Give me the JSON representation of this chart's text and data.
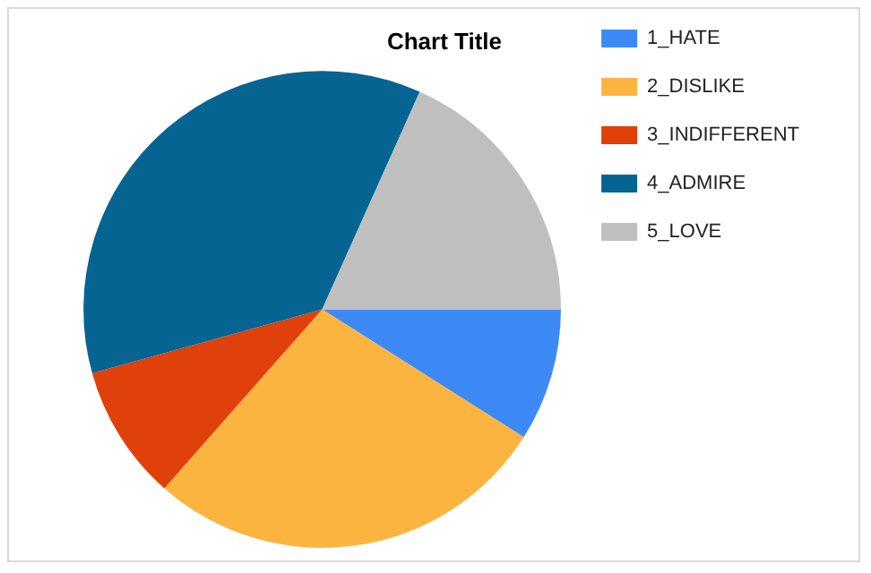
{
  "chart_data": {
    "type": "pie",
    "title": "Chart Title",
    "categories": [
      "1_HATE",
      "2_DISLIKE",
      "3_INDIFFERENT",
      "4_ADMIRE",
      "5_LOVE"
    ],
    "values": [
      9,
      27.5,
      9.2,
      36,
      18.3
    ],
    "colors": [
      "#3d8af7",
      "#fcb441",
      "#e0400a",
      "#056492",
      "#bfbfbf"
    ],
    "legend": "right"
  }
}
